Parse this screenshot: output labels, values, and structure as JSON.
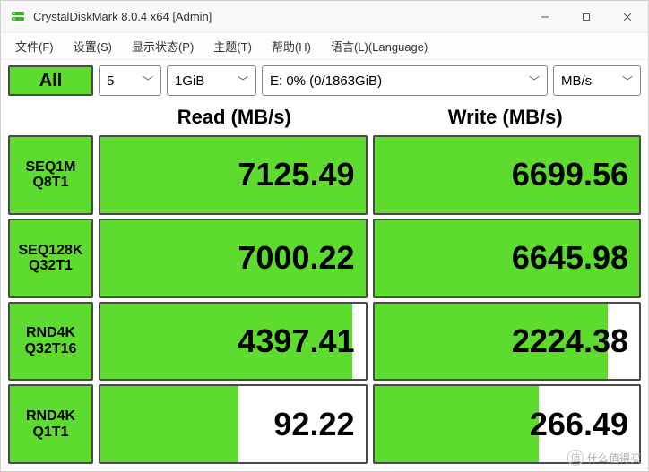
{
  "colors": {
    "green": "#5edb2f",
    "border": "#4a4a4a",
    "bg": "#ffffff",
    "text": "#000000"
  },
  "window": {
    "title": "CrystalDiskMark 8.0.4 x64 [Admin]"
  },
  "menubar": {
    "items": [
      {
        "label": "文件(F)"
      },
      {
        "label": "设置(S)"
      },
      {
        "label": "显示状态(P)"
      },
      {
        "label": "主题(T)"
      },
      {
        "label": "帮助(H)"
      },
      {
        "label": "语言(L)(Language)"
      }
    ]
  },
  "toolbar": {
    "all_label": "All",
    "count": "5",
    "size": "1GiB",
    "drive": "E: 0% (0/1863GiB)",
    "unit": "MB/s"
  },
  "headers": {
    "read": "Read (MB/s)",
    "write": "Write (MB/s)"
  },
  "rows": [
    {
      "label1": "SEQ1M",
      "label2": "Q8T1",
      "read": "7125.49",
      "read_pct": 100,
      "write": "6699.56",
      "write_pct": 100
    },
    {
      "label1": "SEQ128K",
      "label2": "Q32T1",
      "read": "7000.22",
      "read_pct": 100,
      "write": "6645.98",
      "write_pct": 100
    },
    {
      "label1": "RND4K",
      "label2": "Q32T16",
      "read": "4397.41",
      "read_pct": 95,
      "write": "2224.38",
      "write_pct": 88
    },
    {
      "label1": "RND4K",
      "label2": "Q1T1",
      "read": "92.22",
      "read_pct": 52,
      "write": "266.49",
      "write_pct": 62
    }
  ],
  "watermark": {
    "text": "什么值得买",
    "icon": "值"
  }
}
